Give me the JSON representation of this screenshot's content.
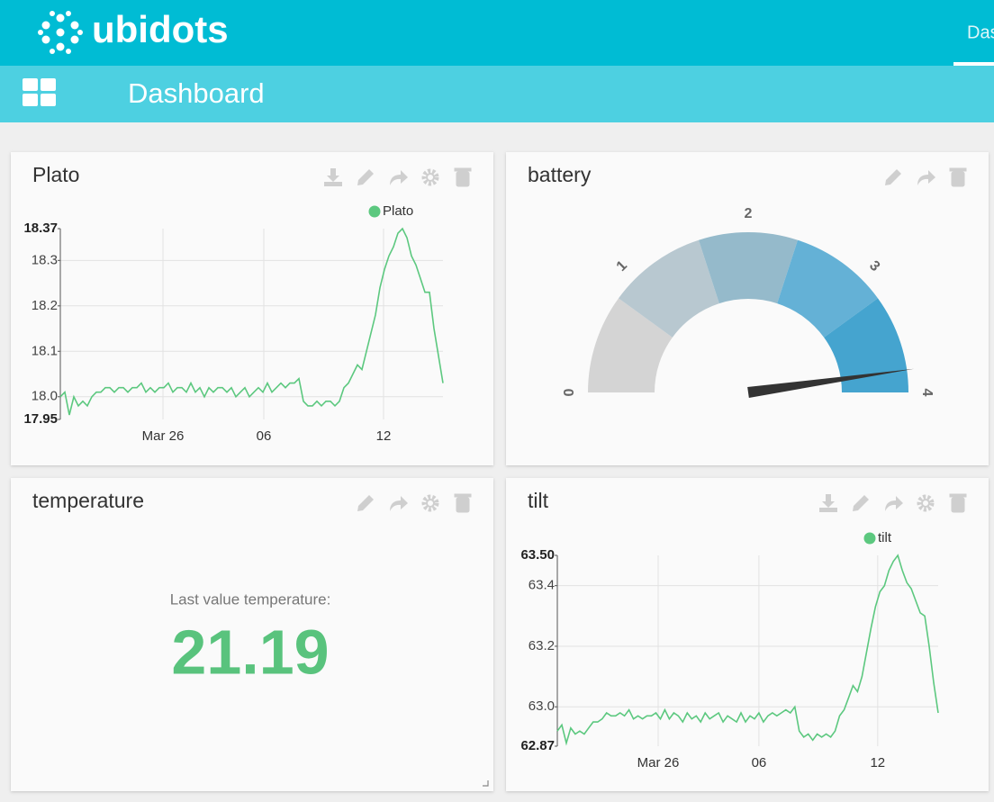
{
  "header": {
    "logo": "ubidots",
    "nav": "Dashboard"
  },
  "toolbar": {
    "title": "Dashboard"
  },
  "widgets": [
    {
      "title": "Plato",
      "chart_data": {
        "type": "line",
        "series": [
          {
            "name": "Plato",
            "color": "#5cc87f",
            "values": [
              18.0,
              18.01,
              17.96,
              18.0,
              17.98,
              17.99,
              17.98,
              18.0,
              18.01,
              18.01,
              18.02,
              18.02,
              18.01,
              18.02,
              18.02,
              18.01,
              18.02,
              18.02,
              18.03,
              18.01,
              18.02,
              18.01,
              18.02,
              18.02,
              18.03,
              18.01,
              18.02,
              18.02,
              18.01,
              18.03,
              18.01,
              18.02,
              18.0,
              18.02,
              18.01,
              18.02,
              18.02,
              18.01,
              18.02,
              18.0,
              18.01,
              18.02,
              18.0,
              18.01,
              18.02,
              18.01,
              18.03,
              18.01,
              18.02,
              18.03,
              18.02,
              18.03,
              18.03,
              18.04,
              17.99,
              17.98,
              17.98,
              17.99,
              17.98,
              17.99,
              17.99,
              17.98,
              17.99,
              18.02,
              18.03,
              18.05,
              18.07,
              18.06,
              18.1,
              18.14,
              18.18,
              18.24,
              18.28,
              18.31,
              18.33,
              18.36,
              18.37,
              18.35,
              18.31,
              18.29,
              18.26,
              18.23,
              18.23,
              18.15,
              18.09,
              18.03
            ]
          }
        ],
        "xlim": [
          0,
          85
        ],
        "xticks": [
          {
            "value": 22.8,
            "label": "Mar 26"
          },
          {
            "value": 45.2,
            "label": "06"
          },
          {
            "value": 71.8,
            "label": "12"
          }
        ],
        "ylim": [
          17.95,
          18.37
        ],
        "yticks": [
          17.95,
          {
            "value": 18,
            "label": "18.0"
          },
          18.1,
          18.2,
          18.3,
          18.37
        ],
        "grid": true,
        "legend": "top-right"
      }
    },
    {
      "title": "battery",
      "chart_data": {
        "type": "gauge",
        "value": 3.82,
        "needle_color": "#333333",
        "ylim": [
          0,
          4
        ],
        "yticks": [
          0,
          1,
          2,
          3,
          4
        ],
        "bands": [
          {
            "from": 0,
            "to": 0.8,
            "color": "#d4d4d4"
          },
          {
            "from": 0.8,
            "to": 1.6,
            "color": "#b8c8d0"
          },
          {
            "from": 1.6,
            "to": 2.4,
            "color": "#95bacb"
          },
          {
            "from": 2.4,
            "to": 3.2,
            "color": "#64b1d6"
          },
          {
            "from": 3.2,
            "to": 4,
            "color": "#45a4cf"
          }
        ]
      }
    },
    {
      "title": "temperature",
      "caption": "Last value temperature:",
      "value": 21.19
    },
    {
      "title": "tilt",
      "chart_data": {
        "type": "line",
        "series": [
          {
            "name": "tilt",
            "color": "#5cc87f",
            "values": [
              62.92,
              62.94,
              62.88,
              62.93,
              62.91,
              62.92,
              62.91,
              62.93,
              62.95,
              62.95,
              62.96,
              62.98,
              62.97,
              62.97,
              62.98,
              62.97,
              62.99,
              62.96,
              62.97,
              62.96,
              62.97,
              62.97,
              62.98,
              62.96,
              62.99,
              62.96,
              62.98,
              62.97,
              62.95,
              62.98,
              62.96,
              62.97,
              62.95,
              62.98,
              62.96,
              62.97,
              62.98,
              62.95,
              62.97,
              62.96,
              62.95,
              62.98,
              62.95,
              62.97,
              62.96,
              62.98,
              62.95,
              62.97,
              62.98,
              62.97,
              62.98,
              62.99,
              62.98,
              63.0,
              62.92,
              62.9,
              62.91,
              62.89,
              62.91,
              62.9,
              62.91,
              62.9,
              62.92,
              62.97,
              62.99,
              63.03,
              63.07,
              63.05,
              63.1,
              63.18,
              63.26,
              63.33,
              63.38,
              63.4,
              63.45,
              63.48,
              63.5,
              63.45,
              63.41,
              63.39,
              63.35,
              63.31,
              63.3,
              63.2,
              63.08,
              62.98
            ]
          }
        ],
        "xlim": [
          0,
          85
        ],
        "xticks": [
          {
            "value": 22.5,
            "label": "Mar 26"
          },
          {
            "value": 45,
            "label": "06"
          },
          {
            "value": 71.5,
            "label": "12"
          }
        ],
        "ylim": [
          62.87,
          63.5
        ],
        "yticks": [
          62.87,
          {
            "value": 63,
            "label": "63.0"
          },
          63.2,
          63.4,
          {
            "value": 63.5,
            "label": "63.50"
          }
        ],
        "grid": true,
        "legend": "top-right"
      }
    }
  ]
}
